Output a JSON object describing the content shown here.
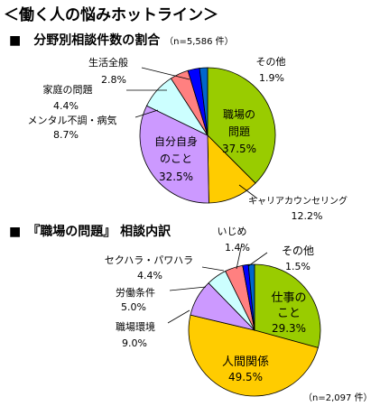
{
  "page_title": "＜働く人の悩みホットライン＞",
  "charts_meta": [
    {
      "heading": "■　分野別相談件数の割合",
      "note": "（n=5,586 件）"
    },
    {
      "heading": "■　『職場の問題』 相談内訳",
      "note": "（n=2,097 件）"
    }
  ],
  "chart_data": [
    {
      "type": "pie",
      "title": "分野別相談件数の割合",
      "n_label": "（n=5,586 件）",
      "slices": [
        {
          "label": "職場の問題",
          "value": 37.5,
          "value_label": "37.5%",
          "color": "#99cc00"
        },
        {
          "label": "キャリアカウンセリング",
          "value": 12.2,
          "value_label": "12.2%",
          "color": "#ffcc00"
        },
        {
          "label": "自分自身のこと",
          "value": 32.5,
          "value_label": "32.5%",
          "color": "#cc99ff"
        },
        {
          "label": "メンタル不調・病気",
          "value": 8.7,
          "value_label": "8.7%",
          "color": "#ccffff"
        },
        {
          "label": "家庭の問題",
          "value": 4.4,
          "value_label": "4.4%",
          "color": "#ff8080"
        },
        {
          "label": "生活全般",
          "value": 2.8,
          "value_label": "2.8%",
          "color": "#0000ff"
        },
        {
          "label": "その他",
          "value": 1.9,
          "value_label": "1.9%",
          "color": "#0066cc"
        }
      ],
      "texts": {
        "shokuba": [
          "職場の",
          "問題"
        ],
        "career": "キャリアカウンセリング",
        "jibun": [
          "自分自身",
          "のこと"
        ],
        "mental": "メンタル不調・病気",
        "katei": "家庭の問題",
        "seikatsu": "生活全般",
        "sonota": "その他"
      }
    },
    {
      "type": "pie",
      "title": "『職場の問題』 相談内訳",
      "n_label": "（n=2,097 件）",
      "slices": [
        {
          "label": "仕事のこと",
          "value": 29.3,
          "value_label": "29.3%",
          "color": "#99cc00"
        },
        {
          "label": "人間関係",
          "value": 49.5,
          "value_label": "49.5%",
          "color": "#ffcc00"
        },
        {
          "label": "職場環境",
          "value": 9.0,
          "value_label": "9.0%",
          "color": "#cc99ff"
        },
        {
          "label": "労働条件",
          "value": 5.0,
          "value_label": "5.0%",
          "color": "#ccffff"
        },
        {
          "label": "セクハラ・パワハラ",
          "value": 4.4,
          "value_label": "4.4%",
          "color": "#ff8080"
        },
        {
          "label": "いじめ",
          "value": 1.4,
          "value_label": "1.4%",
          "color": "#0000ff"
        },
        {
          "label": "その他",
          "value": 1.5,
          "value_label": "1.5%",
          "color": "#0066cc"
        }
      ],
      "texts": {
        "shigoto": [
          "仕事の",
          "こと"
        ],
        "ningen": "人間関係",
        "kankyo": "職場環境",
        "joken": "労働条件",
        "sekuhara": "セクハラ・パワハラ",
        "ijime": "いじめ",
        "sonota": "その他"
      }
    }
  ]
}
